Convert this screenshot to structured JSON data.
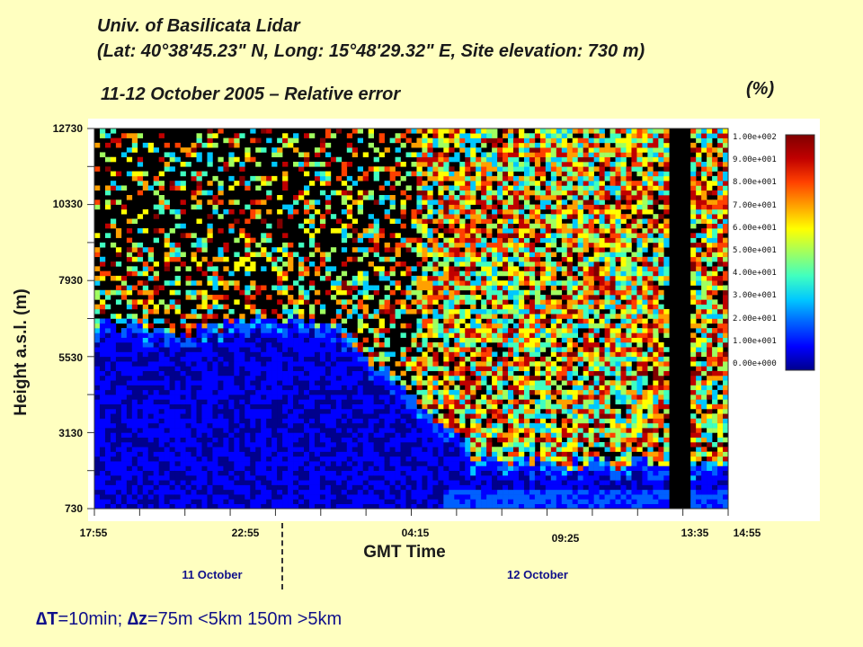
{
  "chart_data": {
    "type": "heatmap",
    "title_line1": "Univ. of Basilicata Lidar",
    "title_line2": "(Lat: 40°38'45.23\" N, Long: 15°48'29.32\" E, Site elevation: 730 m)",
    "subtitle": "11-12 October 2005 – Relative error",
    "ylabel": "Height a.s.l. (m)",
    "xlabel": "GMT Time",
    "yticks": [
      "12730",
      "10330",
      "7930",
      "5530",
      "3130",
      "730"
    ],
    "ylim": [
      730,
      12730
    ],
    "xticks": [
      "17:55",
      "22:55",
      "04:15",
      "09:25",
      "13:35",
      "14:55"
    ],
    "day_labels": [
      "11 October",
      "12 October"
    ],
    "colorbar_unit": "(%)",
    "colorbar_ticks": [
      "1.00e+002",
      "9.00e+001",
      "8.00e+001",
      "7.00e+001",
      "6.00e+001",
      "5.00e+001",
      "4.00e+001",
      "3.00e+001",
      "2.00e+001",
      "1.00e+001",
      "0.00e+000"
    ],
    "colorbar_range": [
      0,
      100
    ],
    "colormap": [
      "#00008c",
      "#0000ff",
      "#0060ff",
      "#00c8ff",
      "#40ffc0",
      "#a0ff60",
      "#ffff00",
      "#ffa000",
      "#ff4000",
      "#c00000",
      "#800000"
    ],
    "no_data_color": "#000000",
    "description_series": [
      {
        "time": "17:55",
        "low_error_top_m": 6500
      },
      {
        "time": "22:55",
        "low_error_top_m": 6900
      },
      {
        "time": "04:15",
        "low_error_top_m": 3600
      },
      {
        "time": "09:25",
        "low_error_top_m": 2100
      },
      {
        "time": "13:35",
        "low_error_top_m": 2100
      }
    ]
  },
  "footer": {
    "delta_t_symbol": "∆T",
    "delta_t_text": "=10min;  ",
    "delta_z_symbol": "∆z",
    "delta_z_text": "=75m <5km 150m >5km"
  }
}
